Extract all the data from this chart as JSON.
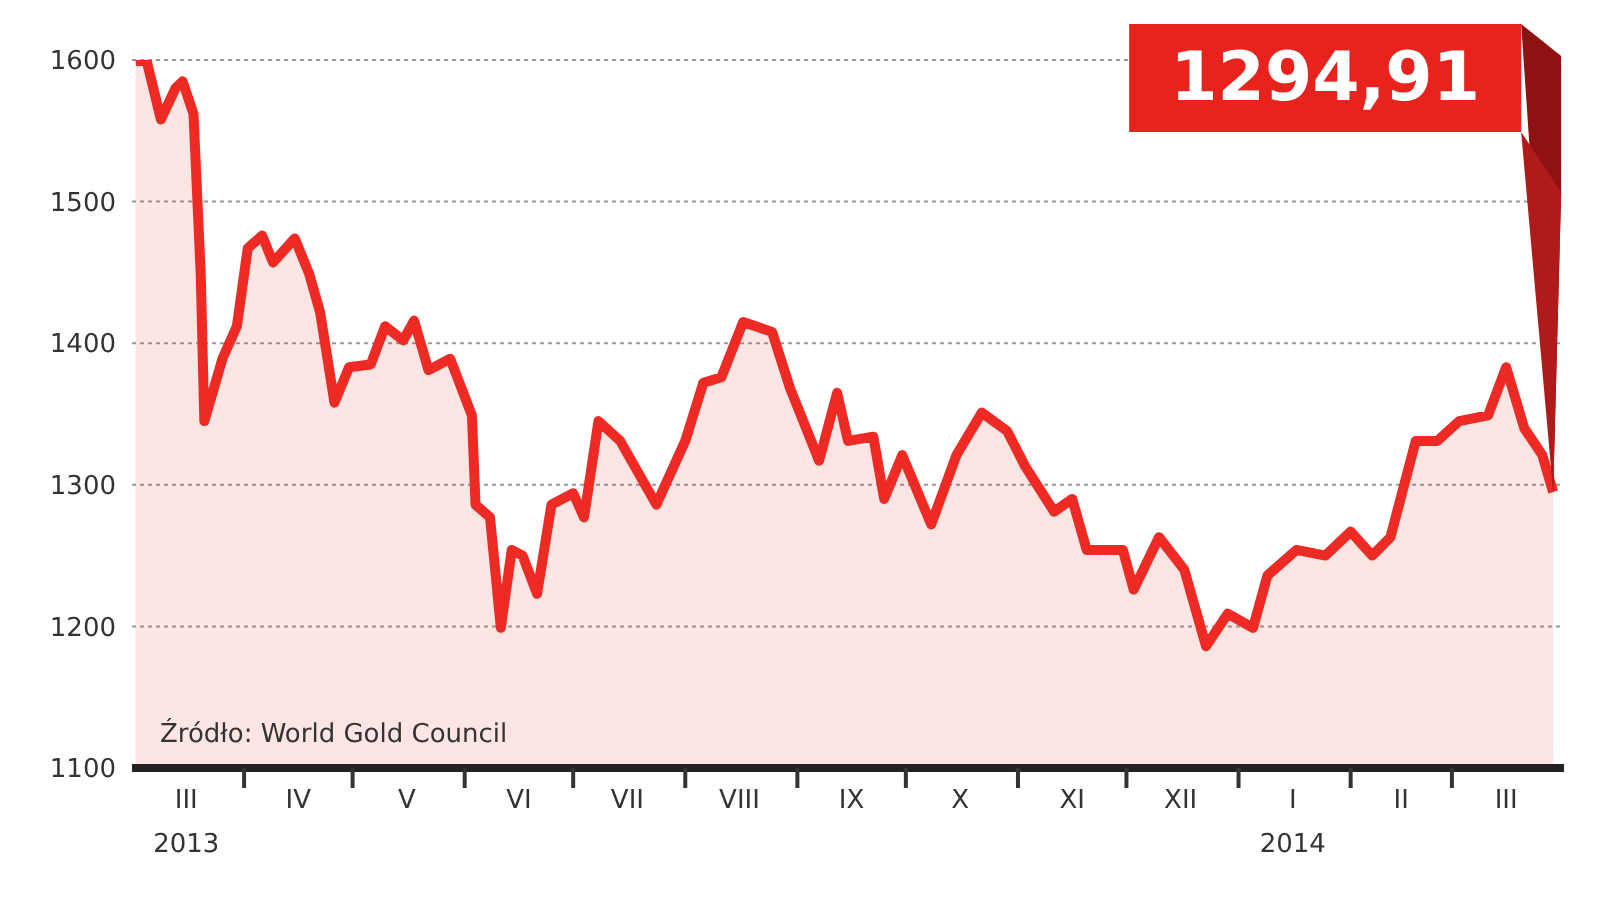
{
  "chart_data": {
    "type": "area",
    "x": [
      "2013-03-02",
      "2013-03-05",
      "2013-03-09",
      "2013-03-13",
      "2013-03-15",
      "2013-03-18",
      "2013-03-20",
      "2013-03-21",
      "2013-03-26",
      "2013-03-30",
      "2013-04-02",
      "2013-04-06",
      "2013-04-09",
      "2013-04-15",
      "2013-04-19",
      "2013-04-22",
      "2013-04-26",
      "2013-04-30",
      "2013-05-06",
      "2013-05-10",
      "2013-05-15",
      "2013-05-18",
      "2013-05-22",
      "2013-05-28",
      "2013-06-03",
      "2013-06-04",
      "2013-06-08",
      "2013-06-11",
      "2013-06-14",
      "2013-06-17",
      "2013-06-21",
      "2013-06-25",
      "2013-07-01",
      "2013-07-04",
      "2013-07-08",
      "2013-07-14",
      "2013-07-24",
      "2013-08-01",
      "2013-08-06",
      "2013-08-11",
      "2013-08-17",
      "2013-08-25",
      "2013-08-30",
      "2013-09-07",
      "2013-09-12",
      "2013-09-15",
      "2013-09-22",
      "2013-09-25",
      "2013-09-30",
      "2013-10-08",
      "2013-10-15",
      "2013-10-22",
      "2013-10-29",
      "2013-11-03",
      "2013-11-11",
      "2013-11-16",
      "2013-11-20",
      "2013-11-30",
      "2013-12-03",
      "2013-12-10",
      "2013-12-17",
      "2013-12-23",
      "2013-12-29",
      "2014-01-05",
      "2014-01-09",
      "2014-01-17",
      "2014-01-25",
      "2014-02-01",
      "2014-02-07",
      "2014-02-12",
      "2014-02-19",
      "2014-02-25",
      "2014-03-03",
      "2014-03-11",
      "2014-03-16",
      "2014-03-21",
      "2014-03-26",
      "2014-03-29"
    ],
    "series": [
      {
        "color": "#ee2a24",
        "values": [
          1599,
          1600,
          1558,
          1580,
          1585,
          1562,
          1449,
          1345,
          1389,
          1412,
          1467,
          1476,
          1457,
          1474,
          1449,
          1422,
          1358,
          1383,
          1385,
          1412,
          1402,
          1416,
          1381,
          1389,
          1349,
          1286,
          1277,
          1199,
          1254,
          1250,
          1223,
          1286,
          1294,
          1277,
          1345,
          1331,
          1286,
          1331,
          1372,
          1376,
          1415,
          1408,
          1368,
          1317,
          1365,
          1331,
          1334,
          1290,
          1321,
          1272,
          1321,
          1351,
          1338,
          1313,
          1281,
          1290,
          1254,
          1254,
          1226,
          1263,
          1240,
          1186,
          1209,
          1199,
          1236,
          1254,
          1250,
          1267,
          1250,
          1263,
          1331,
          1331,
          1345,
          1349,
          1383,
          1340,
          1321,
          1294.91
        ]
      }
    ],
    "xlim": [
      "2013-03-01",
      "2014-04-01"
    ],
    "xticks": [
      {
        "value": "2013-03-16",
        "label": "III\n2013"
      },
      {
        "value": "2013-04-01",
        "label": null
      },
      {
        "value": "2013-04-16",
        "label": "IV"
      },
      {
        "value": "2013-05-01",
        "label": null
      },
      {
        "value": "2013-05-16",
        "label": "V"
      },
      {
        "value": "2013-06-01",
        "label": null
      },
      {
        "value": "2013-06-16",
        "label": "VI"
      },
      {
        "value": "2013-07-01",
        "label": null
      },
      {
        "value": "2013-07-16",
        "label": "VII"
      },
      {
        "value": "2013-08-01",
        "label": null
      },
      {
        "value": "2013-08-16",
        "label": "VIII"
      },
      {
        "value": "2013-09-01",
        "label": null
      },
      {
        "value": "2013-09-16",
        "label": "IX"
      },
      {
        "value": "2013-10-01",
        "label": null
      },
      {
        "value": "2013-10-16",
        "label": "X"
      },
      {
        "value": "2013-11-01",
        "label": null
      },
      {
        "value": "2013-11-16",
        "label": "XI"
      },
      {
        "value": "2013-12-01",
        "label": null
      },
      {
        "value": "2013-12-16",
        "label": "XII"
      },
      {
        "value": "2014-01-01",
        "label": null
      },
      {
        "value": "2014-01-16",
        "label": "I\n2014"
      },
      {
        "value": "2014-02-01",
        "label": null
      },
      {
        "value": "2014-02-15",
        "label": "II"
      },
      {
        "value": "2014-03-01",
        "label": null
      },
      {
        "value": "2014-03-16",
        "label": "III"
      }
    ],
    "ylim": [
      1100,
      1600
    ],
    "yticks": [
      1100,
      1200,
      1300,
      1400,
      1500,
      1600
    ],
    "grid": "y",
    "annotations": [
      {
        "text": "1294,91",
        "x": "2014-03-29",
        "y": 1294.91
      },
      "Źródło: World Gold Council"
    ]
  }
}
